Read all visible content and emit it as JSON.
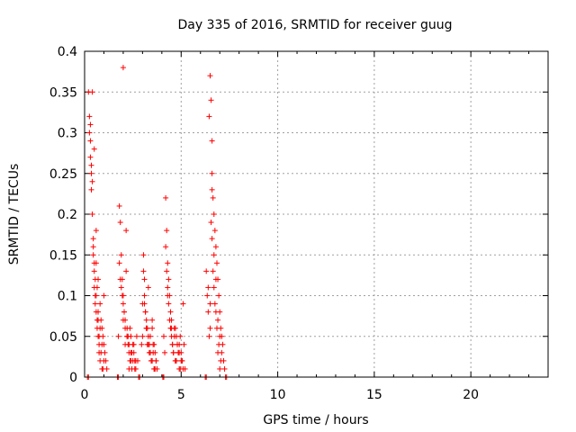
{
  "chart_data": {
    "type": "scatter",
    "title": "Day 335 of 2016, SRMTID for receiver guug",
    "xlabel": "GPS time / hours",
    "ylabel": "SRMTID / TECUs",
    "xlim": [
      0,
      24
    ],
    "ylim": [
      0,
      0.4
    ],
    "xticks": [
      0,
      5,
      10,
      15,
      20
    ],
    "yticks": [
      0,
      0.05,
      0.1,
      0.15,
      0.2,
      0.25,
      0.3,
      0.35,
      0.4
    ],
    "xtick_labels": [
      "0",
      "5",
      "10",
      "15",
      "20"
    ],
    "ytick_labels": [
      "0",
      "0.05",
      "0.1",
      "0.15",
      "0.2",
      "0.25",
      "0.3",
      "0.35",
      "0.4"
    ],
    "grid": true,
    "marker": "+",
    "color": "#ff0000",
    "series": [
      {
        "x": [
          0.2,
          0.25,
          0.3,
          0.3,
          0.35,
          0.35,
          0.4,
          0.4,
          0.45,
          0.45,
          0.5,
          0.5,
          0.5,
          0.55,
          0.55,
          0.6,
          0.6,
          0.65,
          0.65,
          0.7,
          0.7,
          0.75,
          0.75,
          0.8,
          0.8,
          0.85,
          0.9,
          0.9,
          0.95,
          1.0,
          1.0,
          1.05,
          1.1,
          1.15,
          0.25,
          0.35,
          0.45,
          0.55,
          0.6,
          0.65,
          0.7,
          0.8,
          0.9,
          1.0,
          0.3,
          0.4,
          0.5,
          0.6,
          0.7,
          0.75,
          0.85,
          0.95,
          1.75,
          1.8,
          1.85,
          1.9,
          1.95,
          2.0,
          2.0,
          2.05,
          2.1,
          2.15,
          2.2,
          2.25,
          2.3,
          2.35,
          2.4,
          2.45,
          2.5,
          2.55,
          2.6,
          2.65,
          2.7,
          2.75,
          1.8,
          1.9,
          2.0,
          2.1,
          2.2,
          2.3,
          2.4,
          2.5,
          2.6,
          1.85,
          1.95,
          2.05,
          2.15,
          2.25,
          2.35,
          2.45,
          2.55,
          2.65,
          2.0,
          2.1,
          2.2,
          2.3,
          2.4,
          2.95,
          3.0,
          3.05,
          3.1,
          3.15,
          3.2,
          3.25,
          3.3,
          3.35,
          3.4,
          3.45,
          3.5,
          3.55,
          3.6,
          3.65,
          3.7,
          3.75,
          3.0,
          3.1,
          3.2,
          3.3,
          3.4,
          3.5,
          3.6,
          3.7,
          3.05,
          3.15,
          3.25,
          3.35,
          3.45,
          3.55,
          3.65,
          3.1,
          3.2,
          3.3,
          3.4,
          3.5,
          3.6,
          4.1,
          4.15,
          4.2,
          4.25,
          4.3,
          4.35,
          4.4,
          4.45,
          4.5,
          4.55,
          4.6,
          4.65,
          4.7,
          4.75,
          4.8,
          4.85,
          4.9,
          4.95,
          5.0,
          5.05,
          5.1,
          5.15,
          5.2,
          4.2,
          4.3,
          4.4,
          4.5,
          4.6,
          4.7,
          4.8,
          4.9,
          5.0,
          5.1,
          4.25,
          4.35,
          4.45,
          4.55,
          4.65,
          4.75,
          4.85,
          4.95,
          5.05,
          4.3,
          4.5,
          4.7,
          4.9,
          6.3,
          6.35,
          6.4,
          6.45,
          6.5,
          6.55,
          6.6,
          6.6,
          6.65,
          6.7,
          6.75,
          6.8,
          6.85,
          6.9,
          6.95,
          7.0,
          7.05,
          7.1,
          7.15,
          7.2,
          7.25,
          6.4,
          6.5,
          6.6,
          6.7,
          6.8,
          6.9,
          7.0,
          7.1,
          6.45,
          6.55,
          6.65,
          6.75,
          6.85,
          6.95,
          7.05,
          6.5,
          6.6,
          6.7,
          6.8,
          6.9,
          7.0,
          0.15,
          0.2,
          1.7,
          1.75,
          2.8,
          2.85,
          4.05,
          4.1,
          6.25,
          6.3,
          7.3,
          7.35
        ],
        "y": [
          0.35,
          0.32,
          0.29,
          0.27,
          0.25,
          0.23,
          0.35,
          0.2,
          0.17,
          0.15,
          0.28,
          0.13,
          0.11,
          0.1,
          0.09,
          0.14,
          0.08,
          0.07,
          0.06,
          0.12,
          0.05,
          0.04,
          0.03,
          0.09,
          0.02,
          0.07,
          0.06,
          0.01,
          0.05,
          0.04,
          0.1,
          0.03,
          0.02,
          0.01,
          0.3,
          0.26,
          0.16,
          0.12,
          0.18,
          0.11,
          0.08,
          0.06,
          0.04,
          0.02,
          0.31,
          0.24,
          0.14,
          0.1,
          0.07,
          0.05,
          0.03,
          0.01,
          0.05,
          0.21,
          0.19,
          0.15,
          0.12,
          0.38,
          0.1,
          0.08,
          0.06,
          0.18,
          0.05,
          0.04,
          0.03,
          0.02,
          0.05,
          0.01,
          0.04,
          0.03,
          0.02,
          0.01,
          0.05,
          0.02,
          0.14,
          0.11,
          0.09,
          0.07,
          0.06,
          0.04,
          0.03,
          0.02,
          0.01,
          0.12,
          0.1,
          0.08,
          0.13,
          0.05,
          0.06,
          0.03,
          0.04,
          0.02,
          0.07,
          0.04,
          0.05,
          0.01,
          0.02,
          0.04,
          0.09,
          0.15,
          0.12,
          0.08,
          0.06,
          0.04,
          0.11,
          0.03,
          0.05,
          0.02,
          0.07,
          0.04,
          0.01,
          0.03,
          0.02,
          0.01,
          0.05,
          0.1,
          0.07,
          0.05,
          0.03,
          0.06,
          0.04,
          0.02,
          0.13,
          0.08,
          0.06,
          0.04,
          0.02,
          0.03,
          0.01,
          0.09,
          0.06,
          0.04,
          0.03,
          0.02,
          0.01,
          0.05,
          0.03,
          0.22,
          0.18,
          0.14,
          0.12,
          0.1,
          0.08,
          0.06,
          0.04,
          0.03,
          0.06,
          0.02,
          0.05,
          0.04,
          0.03,
          0.01,
          0.05,
          0.03,
          0.02,
          0.09,
          0.04,
          0.01,
          0.16,
          0.11,
          0.07,
          0.05,
          0.03,
          0.02,
          0.04,
          0.03,
          0.02,
          0.01,
          0.13,
          0.09,
          0.06,
          0.04,
          0.05,
          0.02,
          0.03,
          0.01,
          0.02,
          0.1,
          0.07,
          0.06,
          0.04,
          0.13,
          0.1,
          0.08,
          0.05,
          0.37,
          0.34,
          0.29,
          0.25,
          0.22,
          0.2,
          0.18,
          0.16,
          0.14,
          0.12,
          0.1,
          0.08,
          0.06,
          0.05,
          0.04,
          0.02,
          0.01,
          0.11,
          0.09,
          0.23,
          0.15,
          0.12,
          0.07,
          0.05,
          0.03,
          0.32,
          0.19,
          0.13,
          0.09,
          0.06,
          0.04,
          0.02,
          0.06,
          0.17,
          0.11,
          0.08,
          0.03,
          0.01,
          0,
          0,
          0,
          0,
          0,
          0,
          0,
          0,
          0,
          0,
          0,
          0
        ]
      }
    ]
  }
}
